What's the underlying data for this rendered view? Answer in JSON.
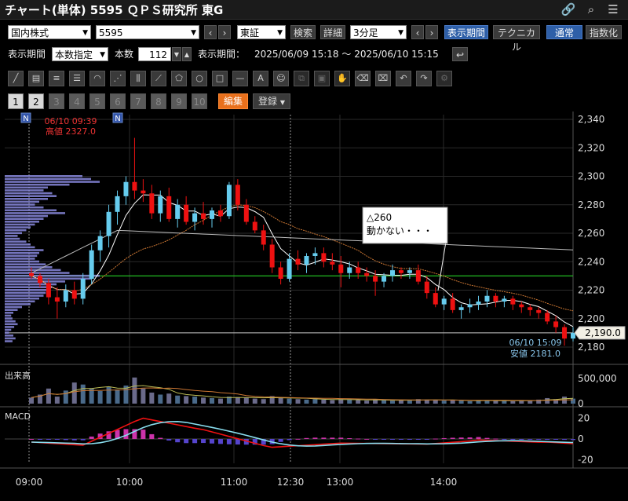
{
  "title": "チャート(単体) 5595 ＱＰＳ研究所 東G",
  "titlebar_icons": [
    "link-icon",
    "search-icon",
    "menu-icon"
  ],
  "controls": {
    "market_type": "国内株式",
    "code": "5595",
    "exchange": "東証",
    "search": "検索",
    "detail": "詳細",
    "interval": "3分足",
    "display_period_btn": "表示期間",
    "technical_btn": "テクニカル",
    "normal_btn": "通常",
    "index_btn": "指数化"
  },
  "period_row": {
    "label": "表示期間",
    "mode": "本数指定",
    "count_label": "本数",
    "count_value": "112",
    "range_label": "表示期間：",
    "range_value": "2025/06/09 15:18 ～ 2025/06/10 15:15"
  },
  "tabs": {
    "numbers": [
      "1",
      "2",
      "3",
      "4",
      "5",
      "6",
      "7",
      "8",
      "9",
      "10"
    ],
    "edit": "編集",
    "register": "登録"
  },
  "colors": {
    "up": "#66ccee",
    "down": "#ee1111",
    "ma_short": "#ffffff",
    "ma_mid": "#cc7733",
    "ma_long": "#bbbbbb",
    "volume_profile": "#8888dd",
    "support_line": "#22bb22",
    "macd_line": "#ee1111",
    "signal_line": "#88ddee",
    "hist_pos": "#cc33aa",
    "hist_neg": "#5544cc"
  },
  "chart_data": {
    "type": "candlestick",
    "price_axis": {
      "min": 2180,
      "max": 2340,
      "ticks": [
        "2,340",
        "2,320",
        "2,300",
        "2,280",
        "2,260",
        "2,240",
        "2,220",
        "2,200",
        "2,180"
      ]
    },
    "time_ticks": [
      "09:00",
      "10:00",
      "11:00",
      "12:30",
      "13:00",
      "14:00"
    ],
    "current_price_label": "2,190.0",
    "current_price": 2190,
    "support_price": 2230,
    "high_annotation": {
      "time": "06/10 09:39",
      "text": "高値 2327.0",
      "value": 2327
    },
    "low_annotation": {
      "time": "06/10 15:09",
      "text": "安値 2181.0",
      "value": 2181
    },
    "comment": {
      "line1": "△260",
      "line2": "動かない・・・"
    },
    "news_markers": [
      "N",
      "N"
    ],
    "candles": [
      [
        2232,
        2236,
        2228,
        2230
      ],
      [
        2230,
        2232,
        2222,
        2225
      ],
      [
        2225,
        2228,
        2210,
        2215
      ],
      [
        2215,
        2222,
        2200,
        2212
      ],
      [
        2212,
        2224,
        2208,
        2220
      ],
      [
        2220,
        2226,
        2210,
        2214
      ],
      [
        2214,
        2232,
        2210,
        2228
      ],
      [
        2228,
        2252,
        2224,
        2248
      ],
      [
        2248,
        2262,
        2240,
        2258
      ],
      [
        2258,
        2280,
        2250,
        2275
      ],
      [
        2275,
        2290,
        2266,
        2286
      ],
      [
        2286,
        2300,
        2280,
        2296
      ],
      [
        2296,
        2327,
        2284,
        2290
      ],
      [
        2290,
        2298,
        2282,
        2288
      ],
      [
        2288,
        2294,
        2270,
        2274
      ],
      [
        2274,
        2290,
        2268,
        2286
      ],
      [
        2286,
        2292,
        2268,
        2270
      ],
      [
        2270,
        2284,
        2264,
        2280
      ],
      [
        2280,
        2286,
        2266,
        2268
      ],
      [
        2268,
        2278,
        2262,
        2274
      ],
      [
        2274,
        2282,
        2266,
        2270
      ],
      [
        2270,
        2278,
        2264,
        2276
      ],
      [
        2276,
        2280,
        2268,
        2272
      ],
      [
        2272,
        2296,
        2270,
        2294
      ],
      [
        2294,
        2298,
        2276,
        2280
      ],
      [
        2280,
        2284,
        2266,
        2268
      ],
      [
        2268,
        2272,
        2260,
        2262
      ],
      [
        2262,
        2266,
        2248,
        2252
      ],
      [
        2252,
        2256,
        2232,
        2236
      ],
      [
        2236,
        2240,
        2224,
        2228
      ],
      [
        2228,
        2246,
        2226,
        2242
      ],
      [
        2242,
        2248,
        2234,
        2238
      ],
      [
        2238,
        2246,
        2232,
        2244
      ],
      [
        2244,
        2250,
        2238,
        2246
      ],
      [
        2246,
        2250,
        2236,
        2240
      ],
      [
        2240,
        2246,
        2234,
        2238
      ],
      [
        2238,
        2244,
        2222,
        2232
      ],
      [
        2232,
        2240,
        2228,
        2236
      ],
      [
        2236,
        2240,
        2228,
        2232
      ],
      [
        2232,
        2236,
        2226,
        2230
      ],
      [
        2230,
        2234,
        2216,
        2226
      ],
      [
        2226,
        2232,
        2222,
        2230
      ],
      [
        2230,
        2238,
        2226,
        2234
      ],
      [
        2234,
        2236,
        2228,
        2232
      ],
      [
        2232,
        2236,
        2228,
        2234
      ],
      [
        2234,
        2238,
        2224,
        2226
      ],
      [
        2226,
        2230,
        2214,
        2218
      ],
      [
        2218,
        2222,
        2208,
        2210
      ],
      [
        2210,
        2216,
        2206,
        2214
      ],
      [
        2214,
        2218,
        2204,
        2206
      ],
      [
        2206,
        2210,
        2200,
        2208
      ],
      [
        2208,
        2214,
        2204,
        2210
      ],
      [
        2210,
        2216,
        2206,
        2212
      ],
      [
        2212,
        2220,
        2208,
        2216
      ],
      [
        2216,
        2218,
        2208,
        2212
      ],
      [
        2212,
        2216,
        2208,
        2214
      ],
      [
        2214,
        2216,
        2206,
        2210
      ],
      [
        2210,
        2212,
        2204,
        2208
      ],
      [
        2208,
        2210,
        2202,
        2206
      ],
      [
        2206,
        2208,
        2200,
        2204
      ],
      [
        2204,
        2206,
        2196,
        2198
      ],
      [
        2198,
        2202,
        2190,
        2194
      ],
      [
        2194,
        2196,
        2181,
        2186
      ],
      [
        2186,
        2194,
        2184,
        2190
      ]
    ],
    "volume_axis": {
      "max": 1000000,
      "ticks": [
        "500,000",
        "0"
      ],
      "label": "出来高"
    },
    "macd_axis": {
      "min": -25,
      "max": 25,
      "ticks": [
        "20",
        "0",
        "-20"
      ],
      "label": "MACD"
    }
  }
}
